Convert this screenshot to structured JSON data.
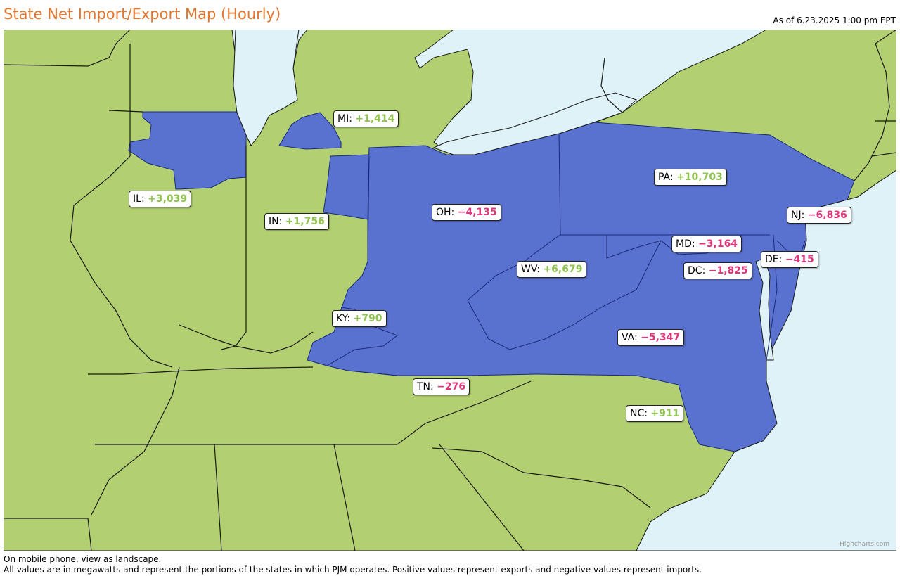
{
  "header": {
    "title": "State Net Import/Export Map (Hourly)",
    "as_of": "As of 6.23.2025 1:00 pm EPT"
  },
  "map": {
    "colors": {
      "land": "#b2d071",
      "pjm": "#5a72cf",
      "water": "#dff2f7",
      "border": "#1a1a1a",
      "positive": "#8fc34d",
      "negative": "#e0357a"
    },
    "states": [
      {
        "abbr": "MI",
        "value": "+1,414",
        "sign": "positive"
      },
      {
        "abbr": "IL",
        "value": "+3,039",
        "sign": "positive"
      },
      {
        "abbr": "IN",
        "value": "+1,756",
        "sign": "positive"
      },
      {
        "abbr": "OH",
        "value": "−4,135",
        "sign": "negative"
      },
      {
        "abbr": "PA",
        "value": "+10,703",
        "sign": "positive"
      },
      {
        "abbr": "NJ",
        "value": "−6,836",
        "sign": "negative"
      },
      {
        "abbr": "MD",
        "value": "−3,164",
        "sign": "negative"
      },
      {
        "abbr": "DC",
        "value": "−1,825",
        "sign": "negative"
      },
      {
        "abbr": "DE",
        "value": "−415",
        "sign": "negative"
      },
      {
        "abbr": "WV",
        "value": "+6,679",
        "sign": "positive"
      },
      {
        "abbr": "KY",
        "value": "+790",
        "sign": "positive"
      },
      {
        "abbr": "VA",
        "value": "−5,347",
        "sign": "negative"
      },
      {
        "abbr": "TN",
        "value": "−276",
        "sign": "negative"
      },
      {
        "abbr": "NC",
        "value": "+911",
        "sign": "positive"
      }
    ],
    "credit": "Highcharts.com"
  },
  "footer": {
    "line1": "On mobile phone, view as landscape.",
    "line2": "All values are in megawatts and represent the portions of the states in which PJM operates. Positive values represent exports and negative values represent imports."
  }
}
